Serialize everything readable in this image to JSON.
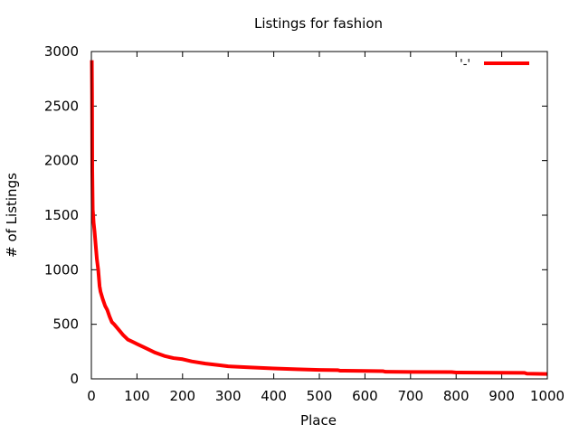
{
  "chart_data": {
    "type": "line",
    "title": "Listings for fashion",
    "xlabel": "Place",
    "ylabel": "# of Listings",
    "xlim": [
      0,
      1000
    ],
    "ylim": [
      0,
      3000
    ],
    "xticks": [
      0,
      100,
      200,
      300,
      400,
      500,
      600,
      700,
      800,
      900,
      1000
    ],
    "yticks": [
      0,
      500,
      1000,
      1500,
      2000,
      2500,
      3000
    ],
    "grid": false,
    "legend_position": "top-right",
    "series": [
      {
        "name": "'-'",
        "color": "#ff0000",
        "x": [
          1,
          1.5,
          2,
          3,
          4,
          5,
          7,
          10,
          12,
          15,
          18,
          20,
          25,
          30,
          35,
          40,
          45,
          50,
          60,
          70,
          80,
          90,
          100,
          120,
          140,
          160,
          180,
          200,
          220,
          250,
          280,
          300,
          350,
          400,
          450,
          500,
          540,
          545,
          600,
          640,
          645,
          700,
          790,
          800,
          900,
          950,
          955,
          1000
        ],
        "y": [
          2920,
          2600,
          1900,
          1550,
          1500,
          1430,
          1350,
          1200,
          1100,
          1000,
          850,
          800,
          730,
          670,
          630,
          570,
          520,
          500,
          450,
          400,
          360,
          340,
          320,
          280,
          240,
          210,
          190,
          180,
          160,
          140,
          125,
          115,
          105,
          95,
          88,
          82,
          80,
          75,
          72,
          70,
          65,
          63,
          62,
          58,
          56,
          55,
          48,
          45
        ]
      }
    ]
  }
}
